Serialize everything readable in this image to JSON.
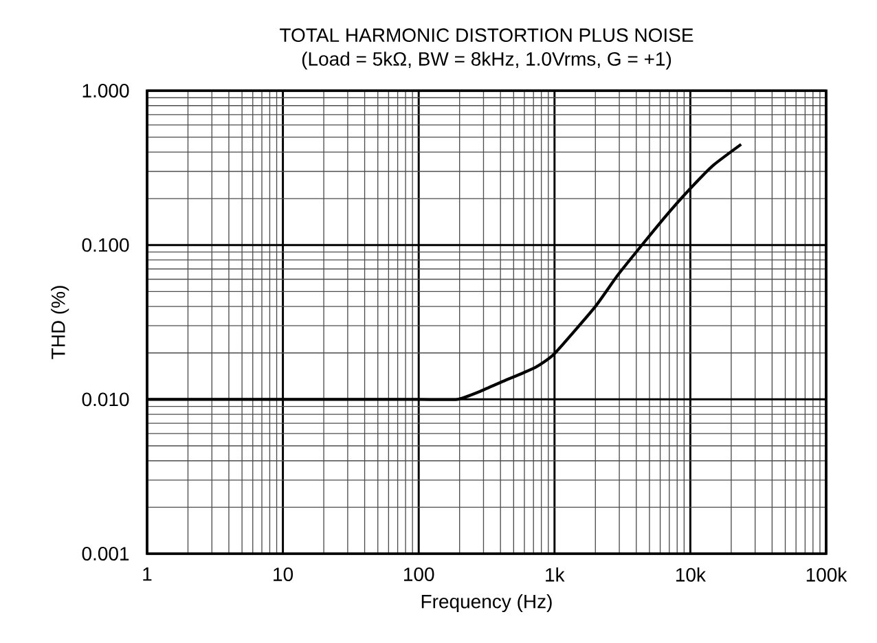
{
  "chart_data": {
    "type": "line",
    "title": "TOTAL HARMONIC DISTORTION PLUS NOISE",
    "subtitle": "(Load = 5kΩ, BW = 8kHz, 1.0Vrms, G = +1)",
    "xlabel": "Frequency (Hz)",
    "ylabel": "THD (%)",
    "log": "xy",
    "grid": true,
    "xlim": [
      1,
      100000
    ],
    "xticks": [
      1,
      10,
      100,
      {
        "value": 1000,
        "label": "1k"
      },
      {
        "value": 10000,
        "label": "10k"
      },
      {
        "value": 100000,
        "label": "100k"
      }
    ],
    "ylim": [
      0.001,
      1
    ],
    "yticks": [
      0.001,
      {
        "value": 0.01,
        "label": "0.010"
      },
      {
        "value": 0.1,
        "label": "0.100"
      },
      {
        "value": 1,
        "label": "1.000"
      }
    ],
    "series": [
      {
        "color": "#000000",
        "x": [
          1,
          10,
          100,
          192,
          285,
          419,
          722,
          1000,
          1977,
          2915,
          4645,
          6840,
          10070,
          14850,
          23650
        ],
        "values": [
          0.01,
          0.01,
          0.01,
          0.01,
          0.0113,
          0.0131,
          0.0161,
          0.0198,
          0.0395,
          0.0637,
          0.106,
          0.16,
          0.234,
          0.33,
          0.449
        ]
      }
    ]
  }
}
